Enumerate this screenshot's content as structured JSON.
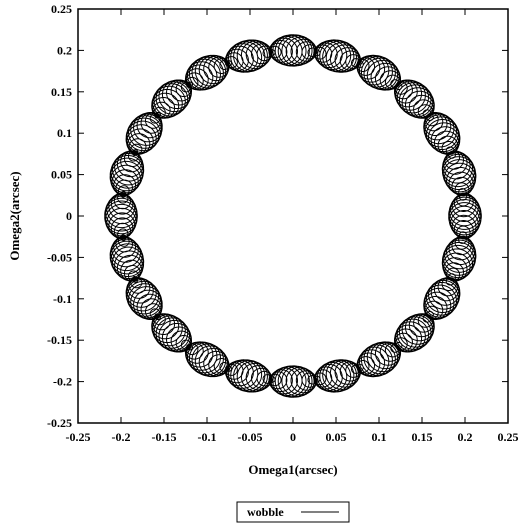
{
  "chart_data": {
    "type": "line",
    "title": "",
    "xlabel": "Omega1(arcsec)",
    "ylabel": "Omega2(arcsec)",
    "xlim": [
      -0.25,
      0.25
    ],
    "ylim": [
      -0.25,
      0.25
    ],
    "x_ticks": [
      "-0.25",
      "-0.2",
      "-0.15",
      "-0.1",
      "-0.05",
      "0",
      "0.05",
      "0.1",
      "0.15",
      "0.2",
      "0.25"
    ],
    "y_ticks": [
      "0.25",
      "0.2",
      "0.15",
      "0.1",
      "0.05",
      "0",
      "-0.05",
      "-0.1",
      "-0.15",
      "-0.2",
      "-0.25"
    ],
    "grid": false,
    "legend_position": "bottom-center",
    "series": [
      {
        "name": "wobble",
        "color": "#000000",
        "model": {
          "center": [
            0.0,
            0.0
          ],
          "mean_radius": 0.2,
          "loops": 360,
          "loop_radius_max": 0.019,
          "lobes": 24
        }
      }
    ]
  }
}
